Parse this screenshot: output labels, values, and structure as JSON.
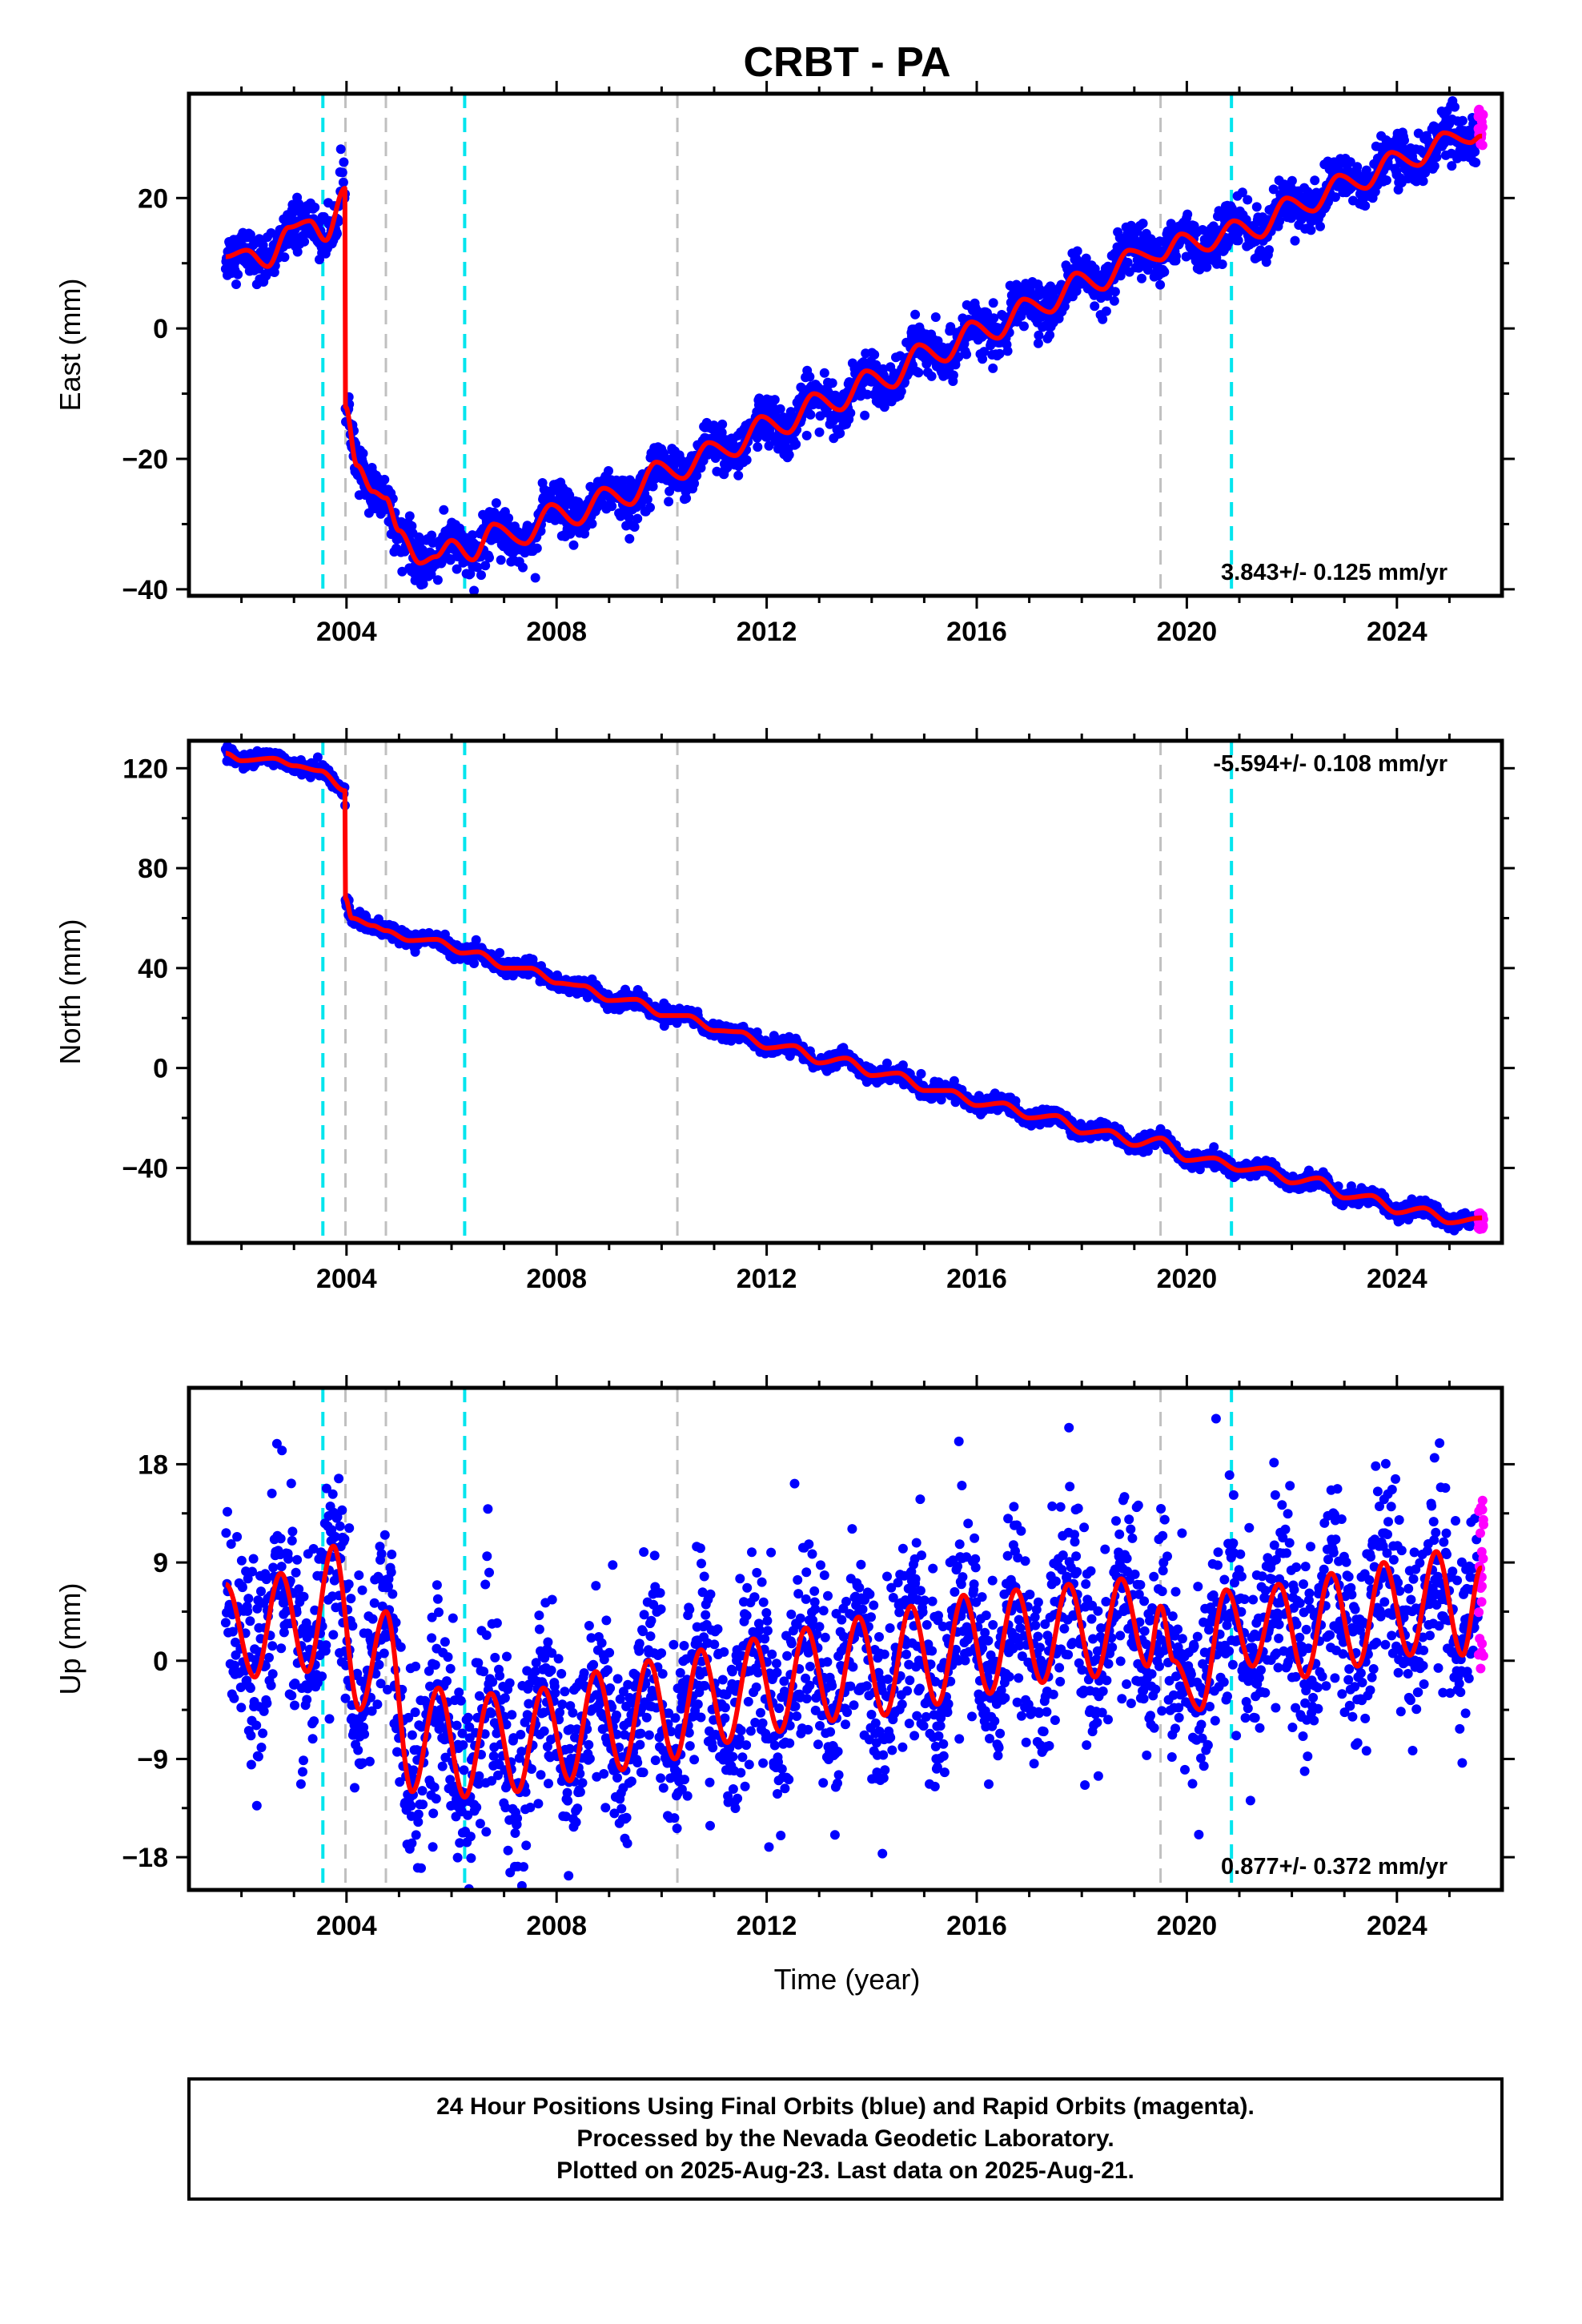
{
  "title": "CRBT - PA",
  "xlabel": "Time (year)",
  "colors": {
    "final": "#0000ff",
    "rapid": "#ff00ff",
    "model": "#ff0000",
    "offset_equipment": "#00e5ee",
    "offset_other": "#c0c0c0"
  },
  "footer": {
    "line1": "24 Hour Positions Using Final Orbits (blue) and Rapid Orbits (magenta).",
    "line2": "Processed by the Nevada Geodetic Laboratory.",
    "line3": "Plotted on 2025-Aug-23. Last data on 2025-Aug-21."
  },
  "offsets": {
    "cyan": [
      2003.55,
      2006.25,
      2020.85
    ],
    "gray": [
      2003.98,
      2004.75,
      2010.3,
      2019.5
    ]
  },
  "chart_data": [
    {
      "type": "scatter",
      "component": "east",
      "ylabel": "East (mm)",
      "rate": "3.843+/- 0.125 mm/yr",
      "rate_position": "bottom-right",
      "xlim": [
        2001.0,
        2026.0
      ],
      "ylim": [
        -41,
        36
      ],
      "xticks": [
        2004,
        2008,
        2012,
        2016,
        2020,
        2024
      ],
      "yticks": [
        -40,
        -20,
        0,
        20
      ],
      "grid": false,
      "model_points": [
        [
          2001.7,
          11
        ],
        [
          2002.1,
          12
        ],
        [
          2002.5,
          9.5
        ],
        [
          2002.9,
          15.5
        ],
        [
          2003.3,
          16.5
        ],
        [
          2003.6,
          13.5
        ],
        [
          2003.97,
          21.5
        ],
        [
          2003.98,
          -12
        ],
        [
          2004.2,
          -21
        ],
        [
          2004.5,
          -25
        ],
        [
          2004.75,
          -26
        ],
        [
          2005.0,
          -31
        ],
        [
          2005.4,
          -36
        ],
        [
          2005.7,
          -35
        ],
        [
          2006.0,
          -32.5
        ],
        [
          2006.4,
          -35.5
        ],
        [
          2006.8,
          -30
        ],
        [
          2007.4,
          -33
        ],
        [
          2007.9,
          -27
        ],
        [
          2008.4,
          -30
        ],
        [
          2008.9,
          -24.5
        ],
        [
          2009.4,
          -27
        ],
        [
          2009.9,
          -20.5
        ],
        [
          2010.4,
          -23
        ],
        [
          2010.9,
          -17.5
        ],
        [
          2011.4,
          -19.5
        ],
        [
          2011.9,
          -13.5
        ],
        [
          2012.4,
          -16
        ],
        [
          2012.9,
          -10
        ],
        [
          2013.4,
          -12.5
        ],
        [
          2013.9,
          -6.5
        ],
        [
          2014.4,
          -9
        ],
        [
          2014.9,
          -2.5
        ],
        [
          2015.4,
          -5
        ],
        [
          2015.9,
          1
        ],
        [
          2016.4,
          -1.5
        ],
        [
          2016.9,
          4.5
        ],
        [
          2017.4,
          2.5
        ],
        [
          2017.9,
          8.5
        ],
        [
          2018.4,
          6
        ],
        [
          2018.9,
          12
        ],
        [
          2019.5,
          10.5
        ],
        [
          2019.9,
          14.5
        ],
        [
          2020.4,
          12
        ],
        [
          2020.9,
          16.5
        ],
        [
          2021.4,
          14
        ],
        [
          2021.9,
          20
        ],
        [
          2022.4,
          18
        ],
        [
          2022.9,
          23.5
        ],
        [
          2023.4,
          21.5
        ],
        [
          2023.9,
          27
        ],
        [
          2024.4,
          25
        ],
        [
          2024.9,
          30
        ],
        [
          2025.4,
          28.5
        ],
        [
          2025.6,
          29.5
        ]
      ],
      "noise_mm": 1.8,
      "rapid_range": [
        28,
        34
      ]
    },
    {
      "type": "scatter",
      "component": "north",
      "ylabel": "North (mm)",
      "rate": "-5.594+/- 0.108 mm/yr",
      "rate_position": "top-right",
      "xlim": [
        2001.0,
        2026.0
      ],
      "ylim": [
        -70,
        131
      ],
      "xticks": [
        2004,
        2008,
        2012,
        2016,
        2020,
        2024
      ],
      "yticks": [
        -40,
        0,
        40,
        80,
        120
      ],
      "grid": false,
      "model_points": [
        [
          2001.7,
          126
        ],
        [
          2002.0,
          123
        ],
        [
          2002.6,
          124
        ],
        [
          2003.0,
          121
        ],
        [
          2003.5,
          119
        ],
        [
          2003.97,
          111
        ],
        [
          2003.98,
          68
        ],
        [
          2004.1,
          60
        ],
        [
          2004.5,
          57
        ],
        [
          2004.75,
          55
        ],
        [
          2005.2,
          51
        ],
        [
          2005.7,
          51.5
        ],
        [
          2006.2,
          46
        ],
        [
          2006.5,
          46.5
        ],
        [
          2007.0,
          40
        ],
        [
          2007.5,
          40
        ],
        [
          2008.0,
          34
        ],
        [
          2008.5,
          33
        ],
        [
          2009.0,
          27
        ],
        [
          2009.5,
          27.5
        ],
        [
          2010.0,
          21
        ],
        [
          2010.5,
          21
        ],
        [
          2011.0,
          15
        ],
        [
          2011.5,
          14.5
        ],
        [
          2012.0,
          8
        ],
        [
          2012.5,
          9
        ],
        [
          2013.0,
          2
        ],
        [
          2013.5,
          4
        ],
        [
          2014.0,
          -3
        ],
        [
          2014.5,
          -2
        ],
        [
          2015.0,
          -9
        ],
        [
          2015.5,
          -9
        ],
        [
          2016.0,
          -15
        ],
        [
          2016.5,
          -14
        ],
        [
          2017.0,
          -20
        ],
        [
          2017.5,
          -19
        ],
        [
          2018.0,
          -26
        ],
        [
          2018.5,
          -25
        ],
        [
          2019.0,
          -31
        ],
        [
          2019.5,
          -28
        ],
        [
          2020.0,
          -37
        ],
        [
          2020.5,
          -36
        ],
        [
          2021.0,
          -41
        ],
        [
          2021.5,
          -40
        ],
        [
          2022.0,
          -46
        ],
        [
          2022.5,
          -44
        ],
        [
          2023.0,
          -52
        ],
        [
          2023.5,
          -51
        ],
        [
          2024.0,
          -58
        ],
        [
          2024.5,
          -56
        ],
        [
          2025.0,
          -62
        ],
        [
          2025.6,
          -60
        ]
      ],
      "noise_mm": 1.5,
      "rapid_range": [
        -65,
        -58
      ]
    },
    {
      "type": "scatter",
      "component": "up",
      "ylabel": "Up (mm)",
      "rate": "0.877+/- 0.372 mm/yr",
      "rate_position": "bottom-right",
      "xlim": [
        2001.0,
        2026.0
      ],
      "ylim": [
        -21,
        25
      ],
      "xticks": [
        2004,
        2008,
        2012,
        2016,
        2020,
        2024
      ],
      "yticks": [
        -18,
        -9,
        0,
        9,
        18
      ],
      "grid": false,
      "model_points": [
        [
          2001.7,
          7
        ],
        [
          2002.25,
          -1.5
        ],
        [
          2002.75,
          8
        ],
        [
          2003.25,
          -1
        ],
        [
          2003.75,
          10.5
        ],
        [
          2004.25,
          -4.5
        ],
        [
          2004.75,
          4.5
        ],
        [
          2005.25,
          -12
        ],
        [
          2005.75,
          -2.5
        ],
        [
          2006.25,
          -12.5
        ],
        [
          2006.75,
          -3
        ],
        [
          2007.25,
          -12
        ],
        [
          2007.75,
          -2.5
        ],
        [
          2008.25,
          -11
        ],
        [
          2008.75,
          -1
        ],
        [
          2009.25,
          -10
        ],
        [
          2009.75,
          0
        ],
        [
          2010.25,
          -9
        ],
        [
          2010.75,
          1
        ],
        [
          2011.25,
          -7.5
        ],
        [
          2011.75,
          2
        ],
        [
          2012.25,
          -6.5
        ],
        [
          2012.75,
          3
        ],
        [
          2013.25,
          -5.5
        ],
        [
          2013.75,
          4
        ],
        [
          2014.25,
          -5
        ],
        [
          2014.75,
          5
        ],
        [
          2015.25,
          -4
        ],
        [
          2015.75,
          6
        ],
        [
          2016.25,
          -3
        ],
        [
          2016.75,
          6.5
        ],
        [
          2017.25,
          -2
        ],
        [
          2017.75,
          7
        ],
        [
          2018.25,
          -1.5
        ],
        [
          2018.75,
          7.5
        ],
        [
          2019.25,
          -0.5
        ],
        [
          2019.5,
          5
        ],
        [
          2019.75,
          0
        ],
        [
          2020.25,
          -4.5
        ],
        [
          2020.75,
          6.5
        ],
        [
          2021.25,
          -0.5
        ],
        [
          2021.75,
          7
        ],
        [
          2022.25,
          -1.5
        ],
        [
          2022.75,
          8
        ],
        [
          2023.25,
          -0.5
        ],
        [
          2023.75,
          9
        ],
        [
          2024.25,
          0.5
        ],
        [
          2024.75,
          10
        ],
        [
          2025.25,
          0.5
        ],
        [
          2025.6,
          8.5
        ]
      ],
      "noise_mm": 4.5,
      "rapid_range": [
        -2,
        16
      ]
    }
  ]
}
